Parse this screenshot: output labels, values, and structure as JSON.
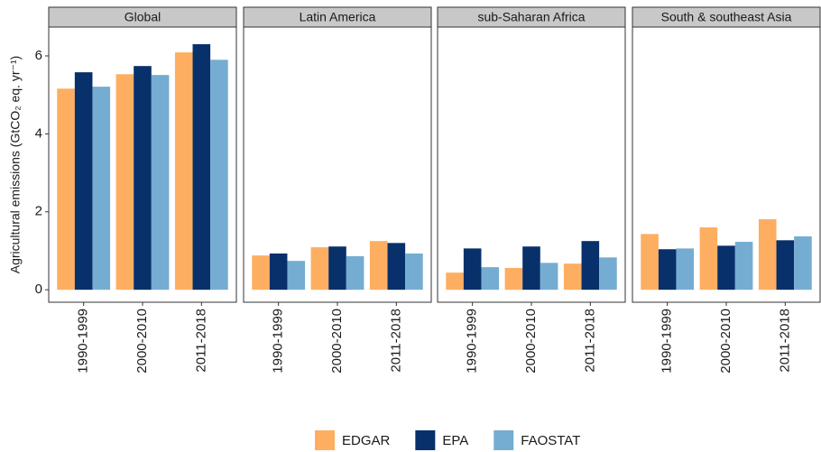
{
  "chart_data": [
    {
      "type": "bar",
      "title": "Global",
      "y_label": "Agricultural emissions (GtCO₂ eq. yr⁻¹)",
      "legend": "bottom",
      "categories": [
        "1990-1999",
        "2000-2010",
        "2011-2018"
      ],
      "series": [
        {
          "name": "EDGAR",
          "color": "#fdae61",
          "values": [
            5.16,
            5.53,
            6.09
          ]
        },
        {
          "name": "EPA",
          "color": "#08306b",
          "values": [
            5.58,
            5.74,
            6.3
          ]
        },
        {
          "name": "FAOSTAT",
          "color": "#74add1",
          "values": [
            5.21,
            5.51,
            5.9
          ]
        }
      ],
      "ylim": [
        -0.32,
        6.74
      ],
      "yticks": [
        0,
        2,
        4,
        6
      ]
    },
    {
      "type": "bar",
      "title": "Latin America",
      "categories": [
        "1990-1999",
        "2000-2010",
        "2011-2018"
      ],
      "series": [
        {
          "name": "EDGAR",
          "color": "#fdae61",
          "values": [
            0.88,
            1.09,
            1.25
          ]
        },
        {
          "name": "EPA",
          "color": "#08306b",
          "values": [
            0.93,
            1.11,
            1.2
          ]
        },
        {
          "name": "FAOSTAT",
          "color": "#74add1",
          "values": [
            0.74,
            0.86,
            0.93
          ]
        }
      ],
      "ylim": [
        -0.32,
        6.74
      ]
    },
    {
      "type": "bar",
      "title": "sub-Saharan Africa",
      "categories": [
        "1990-1999",
        "2000-2010",
        "2011-2018"
      ],
      "series": [
        {
          "name": "EDGAR",
          "color": "#fdae61",
          "values": [
            0.44,
            0.56,
            0.67
          ]
        },
        {
          "name": "EPA",
          "color": "#08306b",
          "values": [
            1.06,
            1.11,
            1.25
          ]
        },
        {
          "name": "FAOSTAT",
          "color": "#74add1",
          "values": [
            0.58,
            0.69,
            0.83
          ]
        }
      ],
      "ylim": [
        -0.32,
        6.74
      ]
    },
    {
      "type": "bar",
      "title": "South & southeast Asia",
      "categories": [
        "1990-1999",
        "2000-2010",
        "2011-2018"
      ],
      "series": [
        {
          "name": "EDGAR",
          "color": "#fdae61",
          "values": [
            1.43,
            1.6,
            1.81
          ]
        },
        {
          "name": "EPA",
          "color": "#08306b",
          "values": [
            1.04,
            1.13,
            1.27
          ]
        },
        {
          "name": "FAOSTAT",
          "color": "#74add1",
          "values": [
            1.06,
            1.23,
            1.37
          ]
        }
      ],
      "ylim": [
        -0.32,
        6.74
      ]
    }
  ]
}
